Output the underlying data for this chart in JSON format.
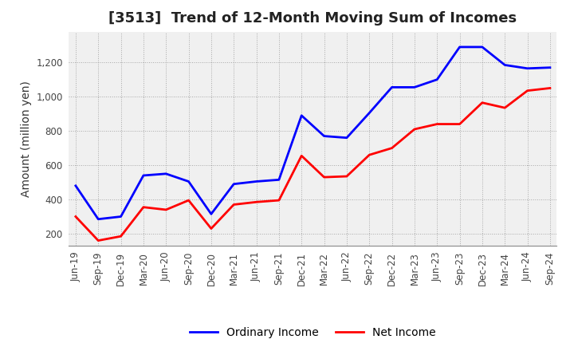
{
  "title": "[3513]  Trend of 12-Month Moving Sum of Incomes",
  "ylabel": "Amount (million yen)",
  "x_labels": [
    "Jun-19",
    "Sep-19",
    "Dec-19",
    "Mar-20",
    "Jun-20",
    "Sep-20",
    "Dec-20",
    "Mar-21",
    "Jun-21",
    "Sep-21",
    "Dec-21",
    "Mar-22",
    "Jun-22",
    "Sep-22",
    "Dec-22",
    "Mar-23",
    "Jun-23",
    "Sep-23",
    "Dec-23",
    "Mar-24",
    "Jun-24",
    "Sep-24"
  ],
  "ordinary_income": [
    480,
    285,
    300,
    540,
    550,
    505,
    315,
    490,
    505,
    515,
    890,
    770,
    760,
    905,
    1055,
    1055,
    1100,
    1290,
    1290,
    1185,
    1165,
    1170
  ],
  "net_income": [
    300,
    160,
    185,
    355,
    340,
    395,
    230,
    370,
    385,
    395,
    655,
    530,
    535,
    660,
    700,
    810,
    840,
    840,
    965,
    935,
    1035,
    1050
  ],
  "ordinary_color": "#0000FF",
  "net_color": "#FF0000",
  "ylim": [
    130,
    1380
  ],
  "yticks": [
    200,
    400,
    600,
    800,
    1000,
    1200
  ],
  "background_color": "#FFFFFF",
  "plot_bg_color": "#F0F0F0",
  "grid_color": "#888888",
  "title_fontsize": 13,
  "label_fontsize": 10,
  "tick_fontsize": 8.5,
  "legend_fontsize": 10
}
